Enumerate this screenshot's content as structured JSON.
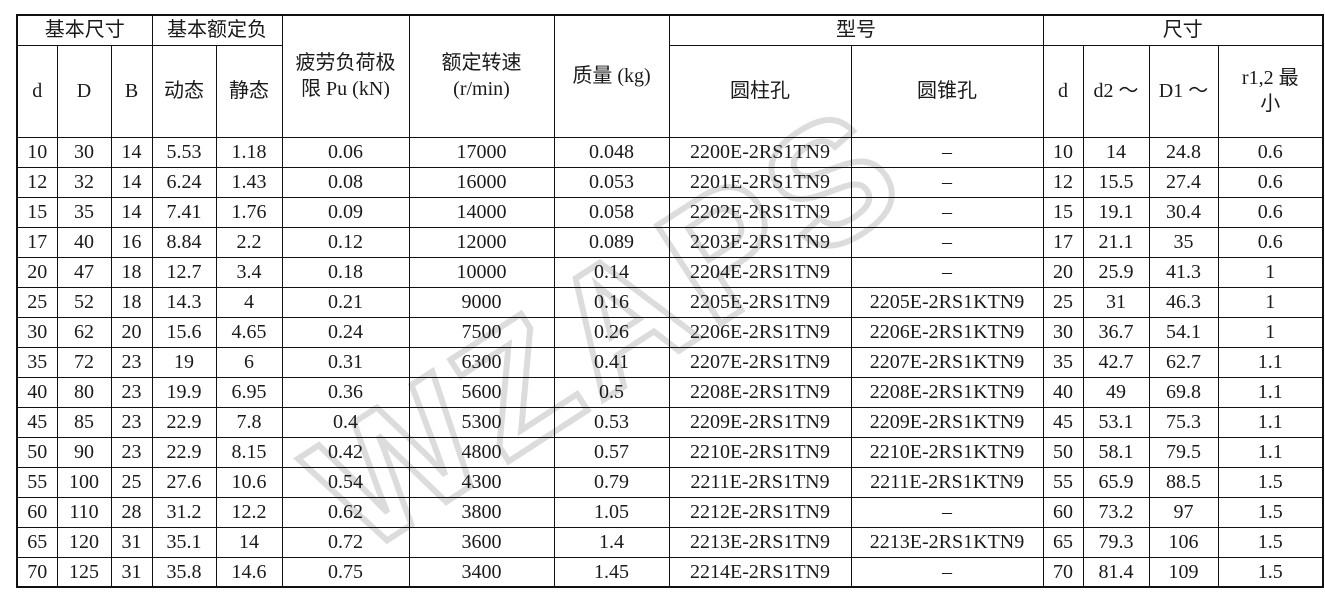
{
  "watermark": {
    "text": "WZAPS",
    "color": "#dcdcdc"
  },
  "table": {
    "header": {
      "group_basic_dimensions": "基本尺寸",
      "group_basic_load": "基本额定负",
      "col_fatigue_limit": "疲劳负荷极\n限 Pu (kN)",
      "col_rated_speed": "额定转速\n(r/min)",
      "col_mass": "质量 (kg)",
      "group_model": "型号",
      "group_dimensions": "尺寸",
      "sub_d": "d",
      "sub_D": "D",
      "sub_B": "B",
      "sub_dynamic": "动态",
      "sub_static": "静态",
      "sub_cylindrical_bore": "圆柱孔",
      "sub_tapered_bore": "圆锥孔",
      "sub_d2": "d",
      "sub_d2_max": "d2 ～",
      "sub_D1_max": "D1 ～",
      "sub_r_min": "r1,2 最\n小"
    },
    "rows": [
      [
        "10",
        "30",
        "14",
        "5.53",
        "1.18",
        "0.06",
        "17000",
        "0.048",
        "2200E-2RS1TN9",
        "–",
        "10",
        "14",
        "24.8",
        "0.6"
      ],
      [
        "12",
        "32",
        "14",
        "6.24",
        "1.43",
        "0.08",
        "16000",
        "0.053",
        "2201E-2RS1TN9",
        "–",
        "12",
        "15.5",
        "27.4",
        "0.6"
      ],
      [
        "15",
        "35",
        "14",
        "7.41",
        "1.76",
        "0.09",
        "14000",
        "0.058",
        "2202E-2RS1TN9",
        "–",
        "15",
        "19.1",
        "30.4",
        "0.6"
      ],
      [
        "17",
        "40",
        "16",
        "8.84",
        "2.2",
        "0.12",
        "12000",
        "0.089",
        "2203E-2RS1TN9",
        "–",
        "17",
        "21.1",
        "35",
        "0.6"
      ],
      [
        "20",
        "47",
        "18",
        "12.7",
        "3.4",
        "0.18",
        "10000",
        "0.14",
        "2204E-2RS1TN9",
        "–",
        "20",
        "25.9",
        "41.3",
        "1"
      ],
      [
        "25",
        "52",
        "18",
        "14.3",
        "4",
        "0.21",
        "9000",
        "0.16",
        "2205E-2RS1TN9",
        "2205E-2RS1KTN9",
        "25",
        "31",
        "46.3",
        "1"
      ],
      [
        "30",
        "62",
        "20",
        "15.6",
        "4.65",
        "0.24",
        "7500",
        "0.26",
        "2206E-2RS1TN9",
        "2206E-2RS1KTN9",
        "30",
        "36.7",
        "54.1",
        "1"
      ],
      [
        "35",
        "72",
        "23",
        "19",
        "6",
        "0.31",
        "6300",
        "0.41",
        "2207E-2RS1TN9",
        "2207E-2RS1KTN9",
        "35",
        "42.7",
        "62.7",
        "1.1"
      ],
      [
        "40",
        "80",
        "23",
        "19.9",
        "6.95",
        "0.36",
        "5600",
        "0.5",
        "2208E-2RS1TN9",
        "2208E-2RS1KTN9",
        "40",
        "49",
        "69.8",
        "1.1"
      ],
      [
        "45",
        "85",
        "23",
        "22.9",
        "7.8",
        "0.4",
        "5300",
        "0.53",
        "2209E-2RS1TN9",
        "2209E-2RS1KTN9",
        "45",
        "53.1",
        "75.3",
        "1.1"
      ],
      [
        "50",
        "90",
        "23",
        "22.9",
        "8.15",
        "0.42",
        "4800",
        "0.57",
        "2210E-2RS1TN9",
        "2210E-2RS1KTN9",
        "50",
        "58.1",
        "79.5",
        "1.1"
      ],
      [
        "55",
        "100",
        "25",
        "27.6",
        "10.6",
        "0.54",
        "4300",
        "0.79",
        "2211E-2RS1TN9",
        "2211E-2RS1KTN9",
        "55",
        "65.9",
        "88.5",
        "1.5"
      ],
      [
        "60",
        "110",
        "28",
        "31.2",
        "12.2",
        "0.62",
        "3800",
        "1.05",
        "2212E-2RS1TN9",
        "–",
        "60",
        "73.2",
        "97",
        "1.5"
      ],
      [
        "65",
        "120",
        "31",
        "35.1",
        "14",
        "0.72",
        "3600",
        "1.4",
        "2213E-2RS1TN9",
        "2213E-2RS1KTN9",
        "65",
        "79.3",
        "106",
        "1.5"
      ],
      [
        "70",
        "125",
        "31",
        "35.8",
        "14.6",
        "0.75",
        "3400",
        "1.45",
        "2214E-2RS1TN9",
        "–",
        "70",
        "81.4",
        "109",
        "1.5"
      ]
    ]
  }
}
